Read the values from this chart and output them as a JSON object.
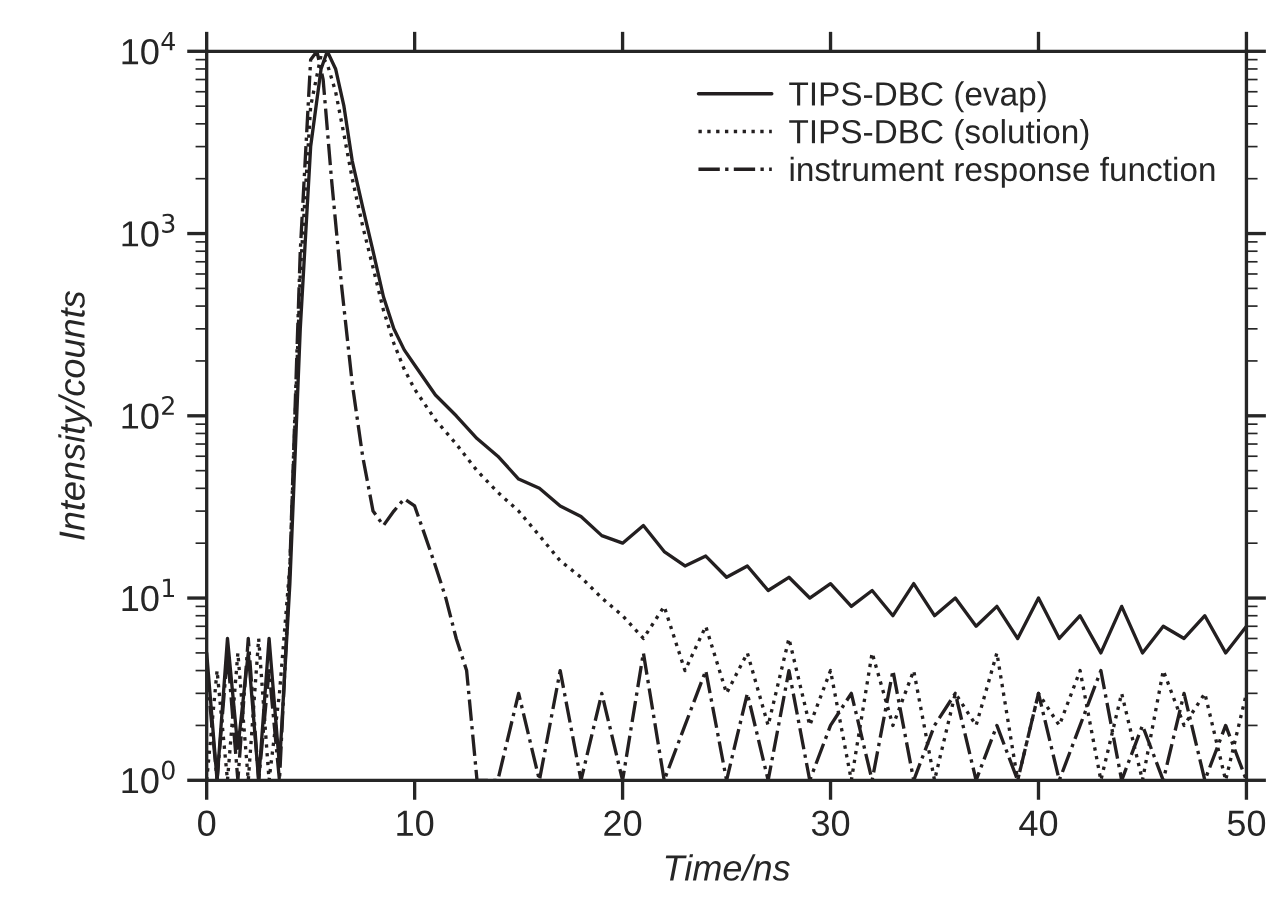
{
  "chart_data": {
    "type": "line",
    "xlabel": "Time/ns",
    "ylabel": "Intensity/counts",
    "log": "y",
    "xlim": [
      0,
      50
    ],
    "xticks": [
      0,
      10,
      20,
      30,
      40,
      50
    ],
    "ylim": [
      1,
      10000
    ],
    "yticks": [
      {
        "value": 1,
        "label": "10$^{0}$"
      },
      {
        "value": 10,
        "label": "10$^{1}$"
      },
      {
        "value": 100,
        "label": "10$^{2}$"
      },
      {
        "value": 1000,
        "label": "10$^{3}$"
      },
      {
        "value": 10000,
        "label": "10$^{4}$"
      }
    ],
    "legend": "top right",
    "grid": false,
    "series": [
      {
        "name": "TIPS-DBC (evap)",
        "color": "#231f20",
        "line_style": "solid",
        "x": [
          0,
          0.5,
          1,
          1.5,
          2,
          2.5,
          3,
          3.5,
          4,
          4.5,
          5,
          5.5,
          5.8,
          6.2,
          6.6,
          7,
          7.5,
          8,
          8.5,
          9,
          9.5,
          10,
          11,
          12,
          13,
          14,
          15,
          16,
          17,
          18,
          19,
          20,
          21,
          22,
          23,
          24,
          25,
          26,
          27,
          28,
          29,
          30,
          31,
          32,
          33,
          34,
          35,
          36,
          37,
          38,
          39,
          40,
          41,
          42,
          43,
          44,
          45,
          46,
          47,
          48,
          49,
          50
        ],
        "values": [
          5,
          1,
          6,
          1.5,
          5,
          1,
          6,
          1.2,
          12,
          300,
          3000,
          8000,
          10000,
          8000,
          5000,
          2500,
          1400,
          800,
          450,
          300,
          230,
          190,
          130,
          100,
          75,
          60,
          45,
          40,
          32,
          28,
          22,
          20,
          25,
          18,
          15,
          17,
          13,
          15,
          11,
          13,
          10,
          12,
          9,
          11,
          8,
          12,
          8,
          10,
          7,
          9,
          6,
          10,
          6,
          8,
          5,
          9,
          5,
          7,
          6,
          8,
          5,
          7
        ]
      },
      {
        "name": "TIPS-DBC (solution)",
        "color": "#231f20",
        "line_style": "dotted",
        "x": [
          0,
          0.5,
          1,
          1.5,
          2,
          2.5,
          3,
          3.5,
          4,
          4.5,
          5,
          5.5,
          5.8,
          6.2,
          6.6,
          7,
          7.5,
          8,
          8.5,
          9,
          9.5,
          10,
          11,
          12,
          13,
          14,
          15,
          16,
          17,
          18,
          19,
          20,
          21,
          22,
          23,
          24,
          25,
          26,
          27,
          28,
          29,
          30,
          31,
          32,
          33,
          34,
          35,
          36,
          37,
          38,
          39,
          40,
          41,
          42,
          43,
          44,
          45,
          46,
          47,
          48,
          49,
          50
        ],
        "values": [
          1,
          4,
          1,
          5,
          1,
          6,
          1,
          3,
          15,
          600,
          5000,
          9500,
          8500,
          6000,
          3500,
          2000,
          1100,
          650,
          380,
          250,
          180,
          140,
          95,
          70,
          50,
          38,
          30,
          22,
          16,
          13,
          10,
          8,
          6,
          9,
          4,
          7,
          3,
          5,
          2,
          6,
          2,
          4,
          1,
          5,
          2,
          4,
          1,
          3,
          2,
          5,
          1,
          3,
          2,
          4,
          1,
          3,
          1,
          4,
          2,
          3,
          1,
          3
        ]
      },
      {
        "name": "instrument response function",
        "color": "#231f20",
        "line_style": "dashdot",
        "x": [
          0,
          0.5,
          1,
          1.5,
          2,
          2.5,
          3,
          3.5,
          4,
          4.5,
          5,
          5.3,
          5.6,
          6,
          6.5,
          7,
          7.5,
          8,
          8.5,
          9,
          9.5,
          10,
          10.5,
          11,
          11.5,
          12,
          12.5,
          13,
          13.5,
          14,
          15,
          16,
          17,
          18,
          19,
          20,
          21,
          22,
          23,
          24,
          25,
          26,
          27,
          28,
          29,
          30,
          31,
          32,
          33,
          34,
          35,
          36,
          37,
          38,
          39,
          40,
          41,
          42,
          43,
          44,
          45,
          46,
          47,
          48,
          49,
          50
        ],
        "values": [
          4,
          1,
          5,
          1,
          6,
          1,
          4,
          1,
          15,
          800,
          9000,
          10000,
          7000,
          2000,
          500,
          150,
          60,
          30,
          25,
          30,
          35,
          32,
          22,
          15,
          10,
          6,
          4,
          1,
          1,
          1,
          3,
          1,
          4,
          1,
          3,
          1,
          5,
          1,
          2,
          4,
          1,
          3,
          1,
          4,
          1,
          2,
          3,
          1,
          4,
          1,
          2,
          3,
          1,
          2,
          1,
          3,
          1,
          2,
          4,
          1,
          2,
          1,
          3,
          1,
          2,
          1
        ]
      }
    ]
  }
}
